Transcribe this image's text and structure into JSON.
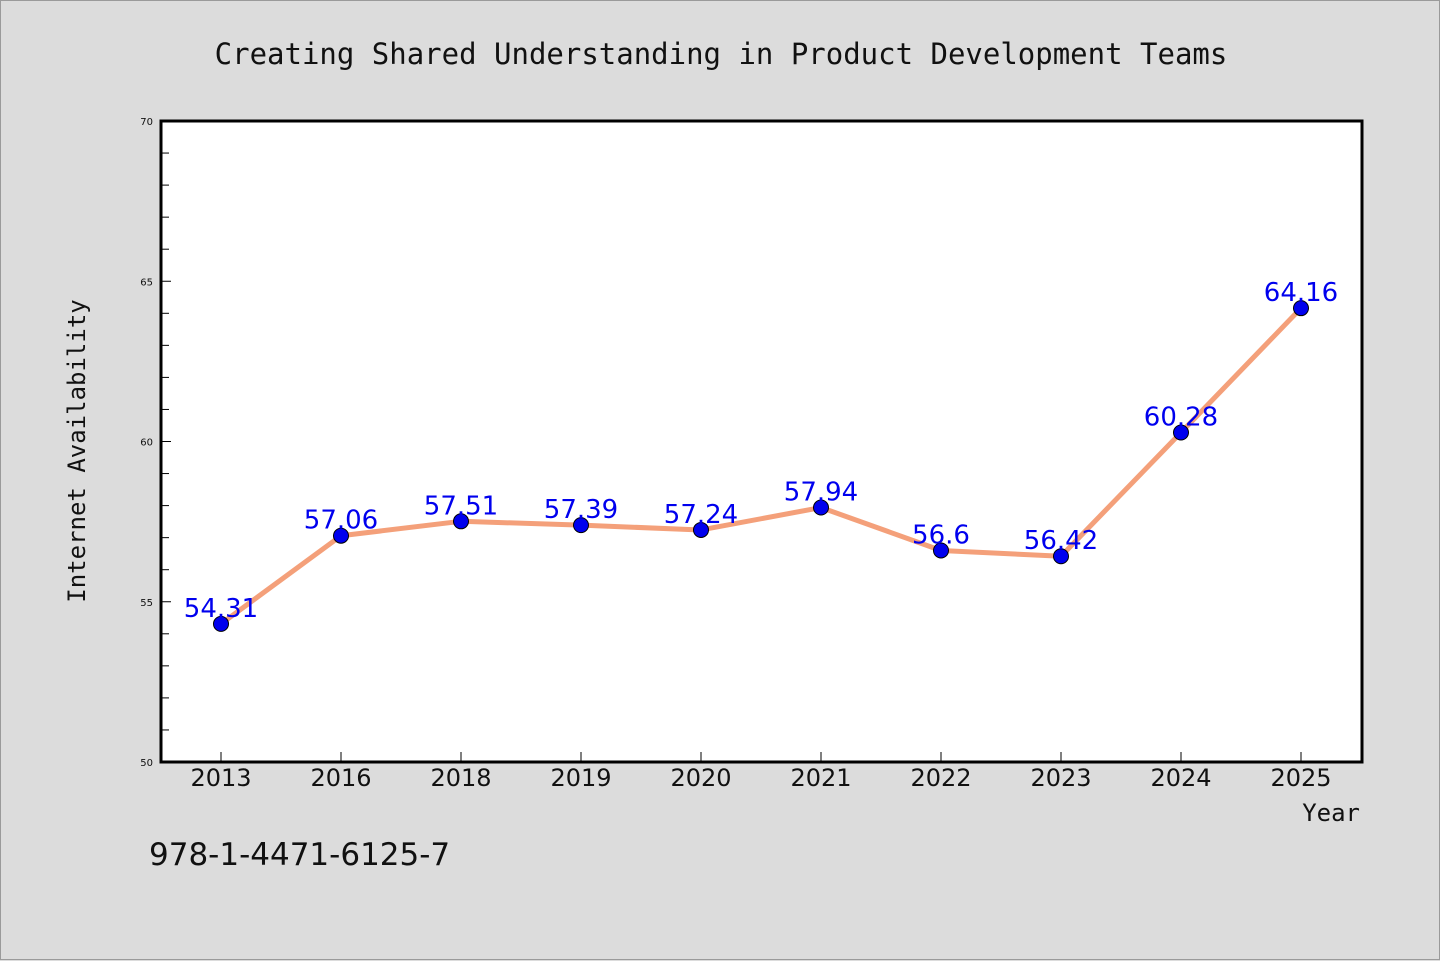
{
  "chart_data": {
    "type": "line",
    "title": "Creating Shared Understanding in Product Development Teams",
    "xlabel": "Year",
    "ylabel": "Internet Availability",
    "categories": [
      "2013",
      "2016",
      "2018",
      "2019",
      "2020",
      "2021",
      "2022",
      "2023",
      "2024",
      "2025"
    ],
    "values": [
      54.31,
      57.06,
      57.51,
      57.39,
      57.24,
      57.94,
      56.6,
      56.42,
      60.28,
      64.16
    ],
    "data_labels": [
      "54.31",
      "57.06",
      "57.51",
      "57.39",
      "57.24",
      "57.94",
      "56.6",
      "56.42",
      "60.28",
      "64.16"
    ],
    "ylim": [
      50,
      70
    ],
    "yticks": [
      "50",
      "55",
      "60",
      "65",
      "70"
    ],
    "grid": false,
    "line_color": "#f4a07a",
    "marker_color": "#0000ee",
    "label_color": "#0000ee"
  },
  "footer": {
    "isbn": "978-1-4471-6125-7"
  }
}
